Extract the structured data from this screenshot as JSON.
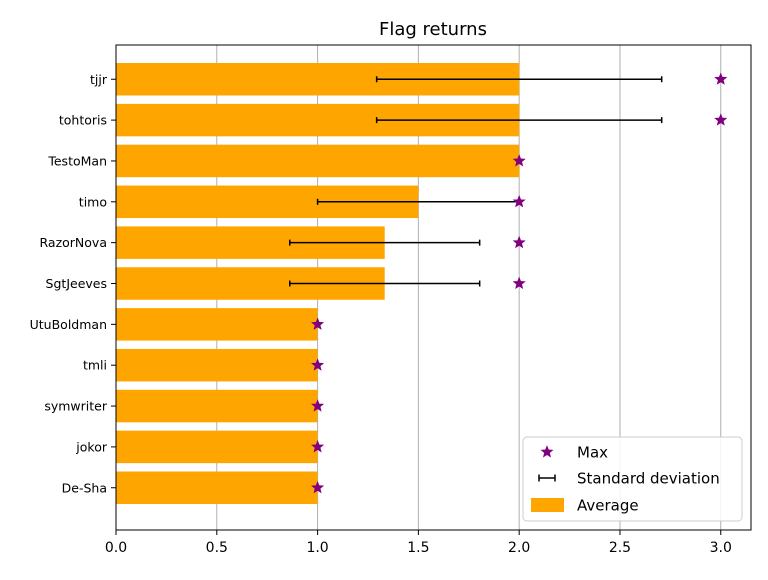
{
  "chart_data": {
    "type": "bar",
    "orientation": "horizontal",
    "title": "Flag returns",
    "xlabel": "",
    "ylabel": "",
    "xlim": [
      0,
      3.15
    ],
    "xticks": [
      0.0,
      0.5,
      1.0,
      1.5,
      2.0,
      2.5,
      3.0
    ],
    "xtick_labels": [
      "0.0",
      "0.5",
      "1.0",
      "1.5",
      "2.0",
      "2.5",
      "3.0"
    ],
    "grid": "vertical",
    "categories": [
      "tjjr",
      "tohtoris",
      "TestoMan",
      "timo",
      "RazorNova",
      "SgtJeeves",
      "UtuBoldman",
      "tmli",
      "symwriter",
      "jokor",
      "De-Sha"
    ],
    "series": [
      {
        "name": "Average",
        "kind": "bar",
        "color": "#ffa500",
        "values": [
          2.0,
          2.0,
          2.0,
          1.5,
          1.333,
          1.333,
          1.0,
          1.0,
          1.0,
          1.0,
          1.0
        ]
      },
      {
        "name": "Standard deviation",
        "kind": "errorbar",
        "color": "#000000",
        "values": [
          0.707,
          0.707,
          0.0,
          0.5,
          0.471,
          0.471,
          0.0,
          0.0,
          0.0,
          0.0,
          0.0
        ]
      },
      {
        "name": "Max",
        "kind": "marker",
        "marker": "star",
        "color": "#800080",
        "values": [
          3,
          3,
          2,
          2,
          2,
          2,
          1,
          1,
          1,
          1,
          1
        ]
      }
    ],
    "legend": {
      "position": "lower-right",
      "entries": [
        {
          "label": "Max",
          "symbol": "star",
          "color": "#800080"
        },
        {
          "label": "Standard deviation",
          "symbol": "errorbar",
          "color": "#000000"
        },
        {
          "label": "Average",
          "symbol": "patch",
          "color": "#ffa500"
        }
      ]
    }
  }
}
